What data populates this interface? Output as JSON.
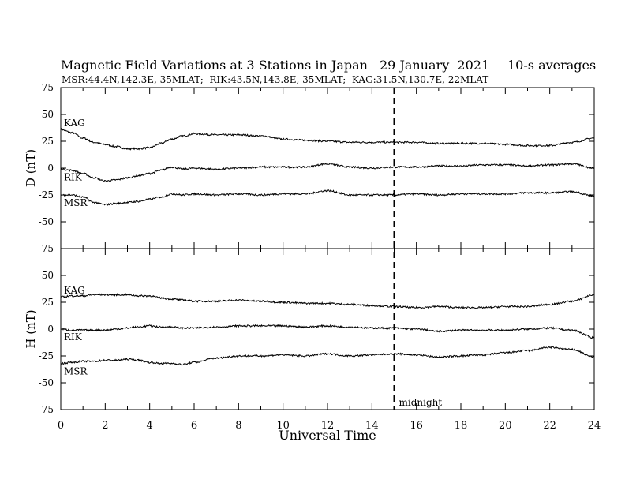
{
  "header": {
    "title": "Magnetic Field Variations at 3 Stations in Japan",
    "date": "29 January  2021",
    "averaging": "10-s averages",
    "stations": "MSR:44.4N,142.3E, 35MLAT;  RIK:43.5N,143.8E, 35MLAT;  KAG:31.5N,130.7E, 22MLAT"
  },
  "chart_data": [
    {
      "type": "line",
      "panel": "top",
      "ylabel": "D (nT)",
      "ylim": [
        -75,
        75
      ],
      "yticks": [
        -75,
        -50,
        -25,
        0,
        25,
        50,
        75
      ],
      "xlim": [
        0,
        24
      ],
      "series": [
        {
          "name": "KAG",
          "x": [
            0,
            0.5,
            1,
            1.5,
            2,
            2.5,
            3,
            3.5,
            4,
            4.5,
            5,
            5.5,
            6,
            7,
            8,
            9,
            10,
            11,
            12,
            13,
            14,
            15,
            16,
            17,
            18,
            19,
            20,
            21,
            22,
            23,
            24
          ],
          "values": [
            36,
            33,
            28,
            24,
            22,
            20,
            18,
            18,
            19,
            23,
            27,
            30,
            32,
            31,
            31,
            30,
            27,
            26,
            25,
            24,
            24,
            24,
            24,
            23,
            23,
            23,
            22,
            21,
            21,
            24,
            28
          ]
        },
        {
          "name": "RIK",
          "x": [
            0,
            0.5,
            1,
            1.5,
            2,
            2.5,
            3,
            3.5,
            4,
            4.5,
            5,
            5.5,
            6,
            7,
            8,
            9,
            10,
            11,
            12,
            13,
            14,
            15,
            16,
            17,
            18,
            19,
            20,
            21,
            22,
            23,
            24
          ],
          "values": [
            -1,
            -2,
            -5,
            -9,
            -12,
            -11,
            -9,
            -7,
            -5,
            -2,
            1,
            -1,
            0,
            -1,
            0,
            1,
            1,
            1,
            4,
            1,
            0,
            1,
            1,
            2,
            2,
            3,
            3,
            2,
            3,
            4,
            0
          ]
        },
        {
          "name": "MSR",
          "x": [
            0,
            0.5,
            1,
            1.5,
            2,
            2.5,
            3,
            3.5,
            4,
            4.5,
            5,
            5.5,
            6,
            7,
            8,
            9,
            10,
            11,
            12,
            13,
            14,
            15,
            16,
            17,
            18,
            19,
            20,
            21,
            22,
            23,
            24
          ],
          "values": [
            -25,
            -25,
            -27,
            -32,
            -34,
            -33,
            -32,
            -31,
            -29,
            -27,
            -24,
            -25,
            -24,
            -25,
            -24,
            -25,
            -24,
            -24,
            -21,
            -25,
            -25,
            -25,
            -24,
            -25,
            -24,
            -24,
            -24,
            -23,
            -23,
            -22,
            -26
          ]
        }
      ]
    },
    {
      "type": "line",
      "panel": "bottom",
      "ylabel": "H (nT)",
      "xlabel": "Universal Time",
      "ylim": [
        -75,
        75
      ],
      "yticks": [
        -75,
        -50,
        -25,
        0,
        25,
        50
      ],
      "xlim": [
        0,
        24
      ],
      "xticks": [
        0,
        2,
        4,
        6,
        8,
        10,
        12,
        14,
        16,
        18,
        20,
        22,
        24
      ],
      "series": [
        {
          "name": "KAG",
          "x": [
            0,
            0.5,
            1,
            1.5,
            2,
            2.5,
            3,
            3.5,
            4,
            4.5,
            5,
            5.5,
            6,
            7,
            8,
            9,
            10,
            11,
            12,
            13,
            14,
            15,
            16,
            17,
            18,
            19,
            20,
            21,
            22,
            23,
            24
          ],
          "values": [
            30,
            31,
            31,
            32,
            32,
            32,
            32,
            31,
            31,
            29,
            28,
            27,
            26,
            26,
            27,
            26,
            25,
            24,
            24,
            23,
            22,
            21,
            20,
            21,
            20,
            20,
            21,
            21,
            23,
            26,
            32
          ]
        },
        {
          "name": "RIK",
          "x": [
            0,
            0.5,
            1,
            1.5,
            2,
            2.5,
            3,
            3.5,
            4,
            4.5,
            5,
            5.5,
            6,
            7,
            8,
            9,
            10,
            11,
            12,
            13,
            14,
            15,
            16,
            17,
            18,
            19,
            20,
            21,
            22,
            23,
            24
          ],
          "values": [
            0,
            -1,
            -1,
            -1,
            -1,
            0,
            1,
            2,
            3,
            2,
            2,
            1,
            1,
            2,
            3,
            3,
            3,
            2,
            3,
            2,
            1,
            1,
            0,
            -2,
            -1,
            -1,
            -1,
            0,
            1,
            -1,
            -8
          ]
        },
        {
          "name": "MSR",
          "x": [
            0,
            0.5,
            1,
            1.5,
            2,
            2.5,
            3,
            3.5,
            4,
            4.5,
            5,
            5.5,
            6,
            7,
            8,
            9,
            10,
            11,
            12,
            13,
            14,
            15,
            16,
            17,
            18,
            19,
            20,
            21,
            22,
            23,
            24
          ],
          "values": [
            -32,
            -31,
            -30,
            -30,
            -29,
            -29,
            -28,
            -29,
            -31,
            -32,
            -32,
            -33,
            -31,
            -27,
            -25,
            -25,
            -24,
            -25,
            -23,
            -25,
            -24,
            -23,
            -24,
            -26,
            -25,
            -24,
            -22,
            -20,
            -17,
            -19,
            -26
          ]
        }
      ]
    }
  ],
  "annotations": {
    "marker_x": 15,
    "marker_label": "midnight",
    "style": "dashed"
  }
}
